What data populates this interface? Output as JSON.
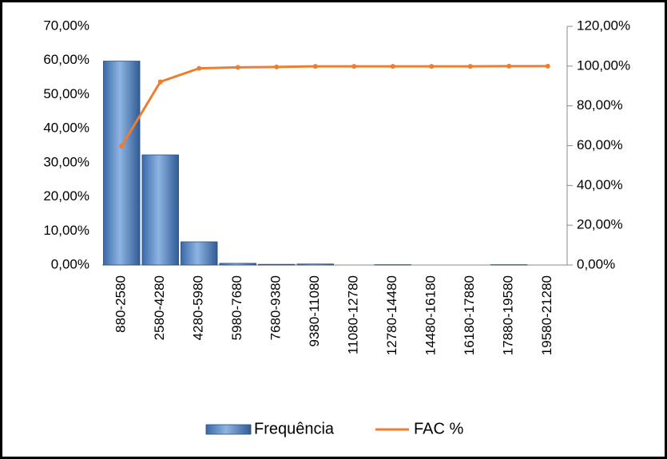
{
  "chart_data": {
    "type": "bar",
    "categories": [
      "880-2580",
      "2580-4280",
      "4280-5980",
      "5980-7680",
      "7680-9380",
      "9380-11080",
      "11080-12780",
      "12780-14480",
      "14480-16180",
      "16180-17880",
      "17880-19580",
      "19580-21280"
    ],
    "series": [
      {
        "name": "Frequência",
        "color": "#4f81bd",
        "values": [
          59.8,
          32.3,
          6.8,
          0.5,
          0.2,
          0.3,
          0,
          0.1,
          0,
          0,
          0.1,
          0
        ]
      },
      {
        "name": "FAC %",
        "color": "#ed7d31",
        "type": "line",
        "axis": "y2",
        "values": [
          59.8,
          92.1,
          98.9,
          99.4,
          99.6,
          99.9,
          99.9,
          99.9,
          99.9,
          99.9,
          100,
          100
        ]
      }
    ],
    "ylim": [
      0,
      70
    ],
    "yticks": [
      {
        "value": 0,
        "label": "0,00%"
      },
      {
        "value": 10,
        "label": "10,00%"
      },
      {
        "value": 20,
        "label": "20,00%"
      },
      {
        "value": 30,
        "label": "30,00%"
      },
      {
        "value": 40,
        "label": "40,00%"
      },
      {
        "value": 50,
        "label": "50,00%"
      },
      {
        "value": 60,
        "label": "60,00%"
      },
      {
        "value": 70,
        "label": "70,00%"
      }
    ],
    "y2lim": [
      0,
      120
    ],
    "y2ticks": [
      {
        "value": 0,
        "label": "0,00%"
      },
      {
        "value": 20,
        "label": "20,00%"
      },
      {
        "value": 40,
        "label": "40,00%"
      },
      {
        "value": 60,
        "label": "60,00%"
      },
      {
        "value": 80,
        "label": "80,00%"
      },
      {
        "value": 100,
        "label": "100,00%"
      },
      {
        "value": 120,
        "label": "120,00%"
      }
    ],
    "legend": "bottom"
  }
}
